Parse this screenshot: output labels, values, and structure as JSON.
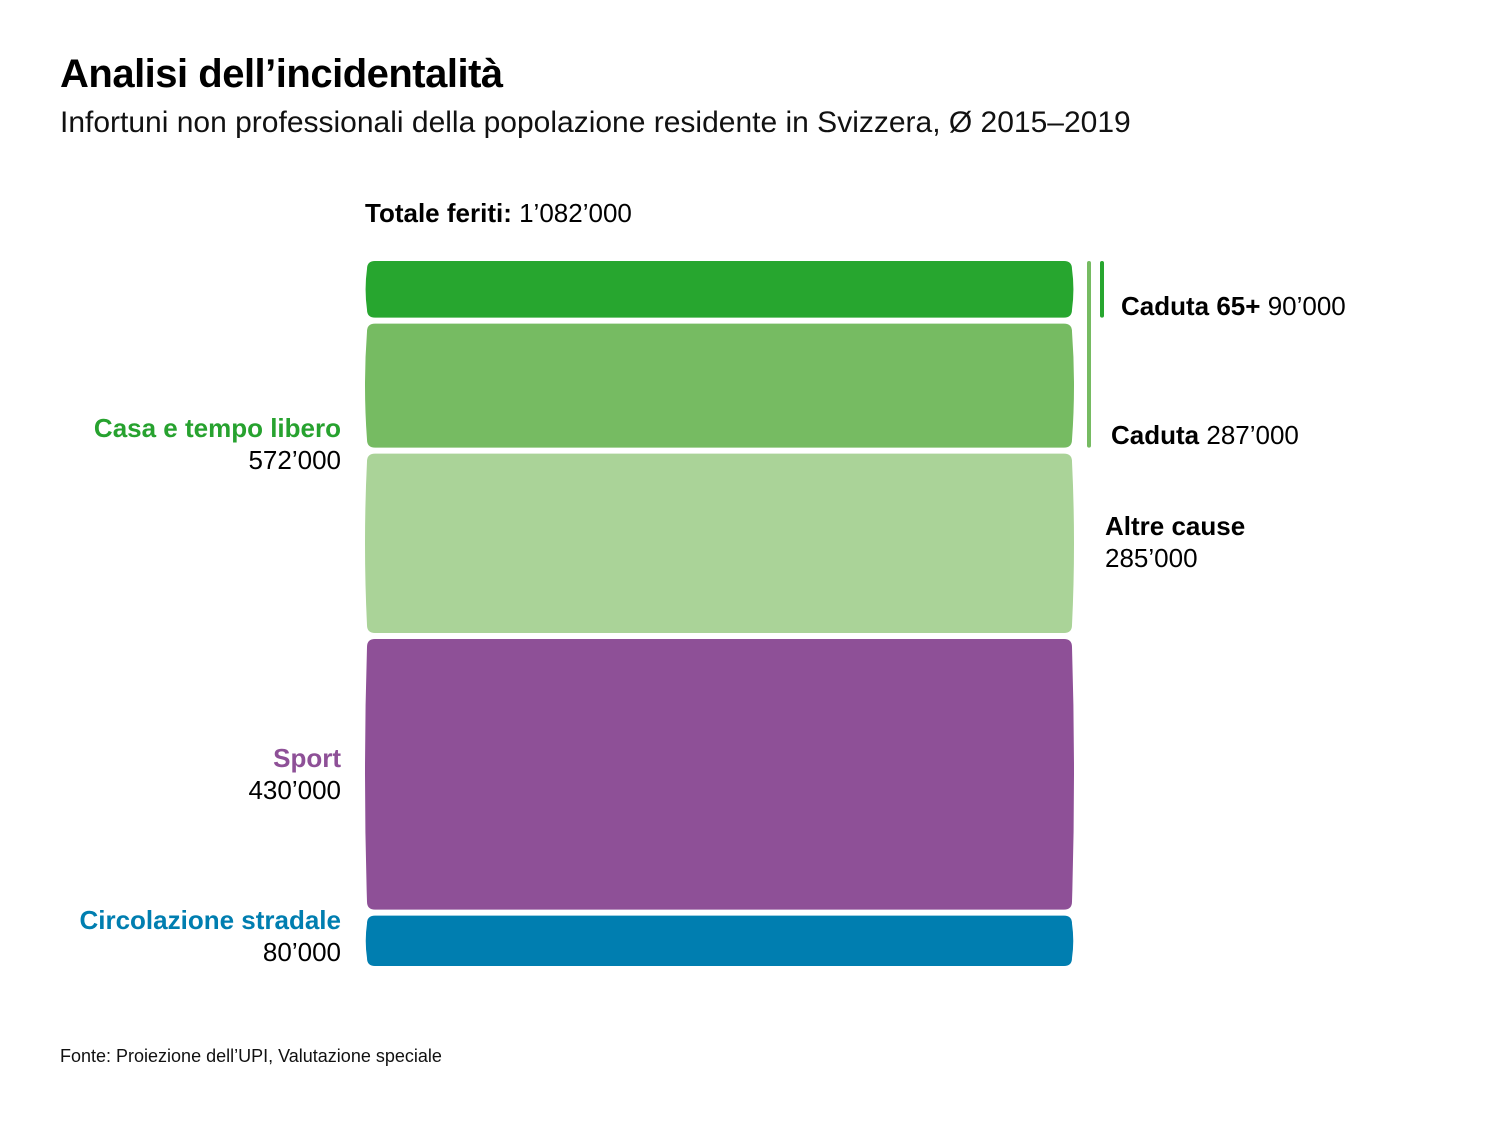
{
  "header": {
    "title": "Analisi dell’incidentalità",
    "subtitle": "Infortuni non professionali della popolazione residente in Svizzera, Ø 2015–2019"
  },
  "total": {
    "label": "Totale feriti:",
    "value": "1’082’000"
  },
  "source": "Fonte: Proiezione dell’UPI, Valutazione speciale",
  "chart_data": {
    "type": "bar",
    "orientation": "stacked-vertical",
    "title": "Analisi dell’incidentalità",
    "subtitle": "Infortuni non professionali della popolazione residente in Svizzera, Ø 2015–2019",
    "total": 1082000,
    "main_categories": [
      {
        "name": "Casa e tempo libero",
        "value": 572000,
        "value_label": "572’000",
        "color": "#27a22f"
      },
      {
        "name": "Sport",
        "value": 430000,
        "value_label": "430’000",
        "color": "#8e5097"
      },
      {
        "name": "Circolazione stradale",
        "value": 80000,
        "value_label": "80’000",
        "color": "#007eb0"
      }
    ],
    "segments": [
      {
        "name": "Caduta 65+",
        "value": 90000,
        "value_label": "90’000",
        "color": "#27a62f",
        "parent": "Casa e tempo libero"
      },
      {
        "name": "Caduta",
        "value": 197000,
        "value_label": "287’000",
        "color": "#76bb62",
        "parent": "Casa e tempo libero",
        "note": "Caduta total 287’000 includes Caduta 65+"
      },
      {
        "name": "Altre cause",
        "value": 285000,
        "value_label": "285’000",
        "color": "#aad398",
        "parent": "Casa e tempo libero"
      },
      {
        "name": "Sport",
        "value": 430000,
        "value_label": "430’000",
        "color": "#8e5097",
        "parent": "Sport"
      },
      {
        "name": "Circolazione stradale",
        "value": 80000,
        "value_label": "80’000",
        "color": "#007eb0",
        "parent": "Circolazione stradale"
      }
    ],
    "brackets": [
      {
        "name": "Caduta",
        "value": 287000,
        "color": "#76bb62"
      },
      {
        "name": "Caduta 65+",
        "value": 90000,
        "color": "#27a62f"
      }
    ]
  }
}
